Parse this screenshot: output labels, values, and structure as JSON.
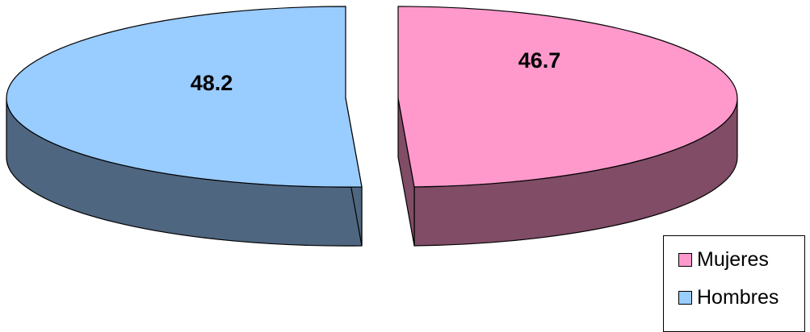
{
  "chart_data": {
    "type": "pie",
    "title": "",
    "series": [
      {
        "name": "Hombres",
        "value": 48.2,
        "color": "#99ccff",
        "side_color": "#4f6680"
      },
      {
        "name": "Mujeres",
        "value": 46.7,
        "color": "#ff99cc",
        "side_color": "#804c66"
      }
    ],
    "legend": {
      "position": "bottom-right",
      "entries": [
        "Mujeres",
        "Hombres"
      ]
    },
    "style": "3d-exploded"
  }
}
